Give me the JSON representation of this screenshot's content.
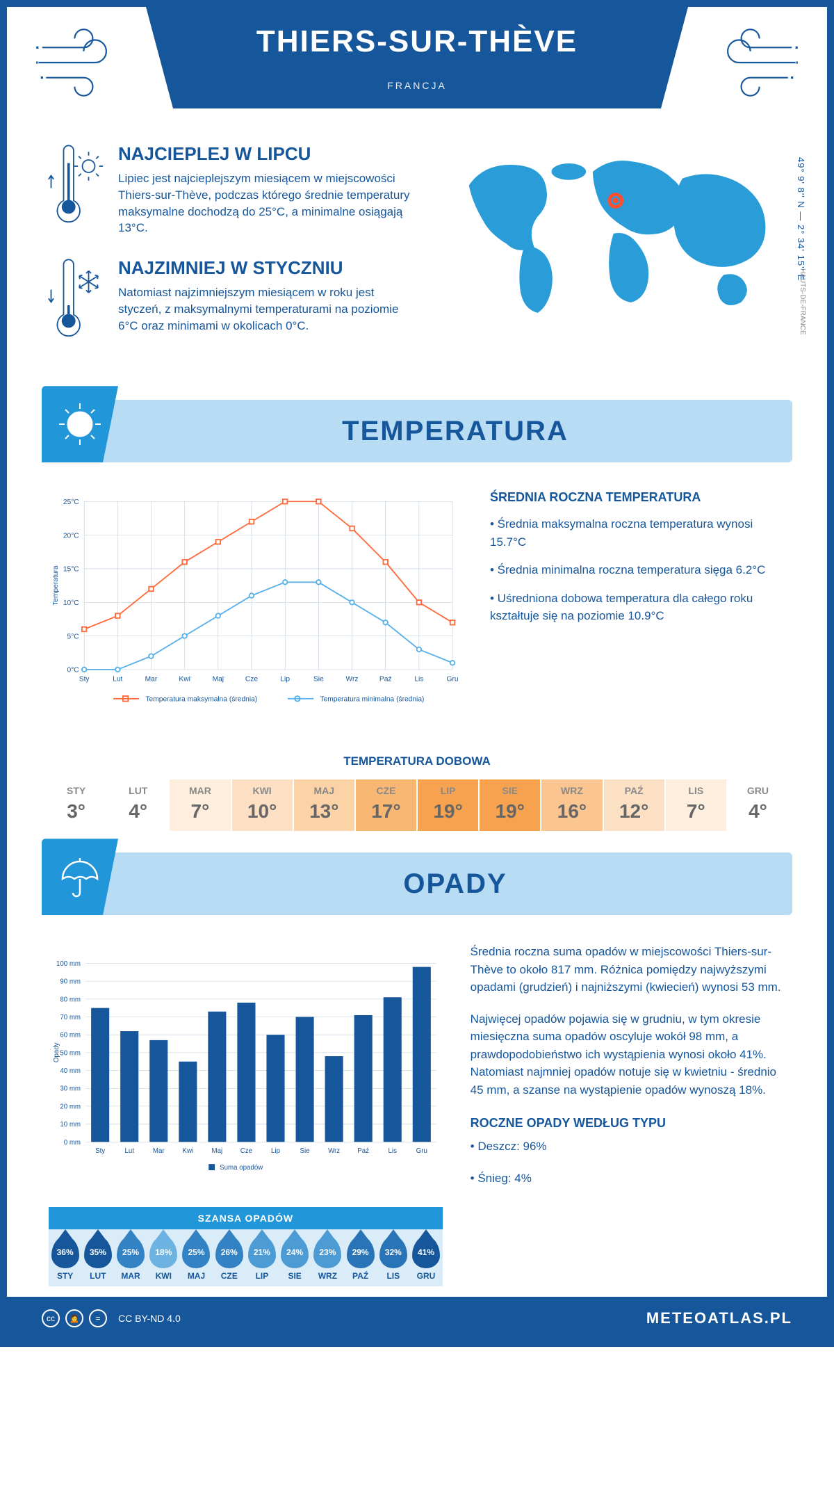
{
  "header": {
    "title": "THIERS-SUR-THÈVE",
    "country": "FRANCJA"
  },
  "coords": "49° 9' 8'' N — 2° 34' 15'' E",
  "region_label": "HAUTS-DE-FRANCE",
  "intro": {
    "warm": {
      "title": "NAJCIEPLEJ W LIPCU",
      "text": "Lipiec jest najcieplejszym miesiącem w miejscowości Thiers-sur-Thève, podczas którego średnie temperatury maksymalne dochodzą do 25°C, a minimalne osiągają 13°C."
    },
    "cold": {
      "title": "NAJZIMNIEJ W STYCZNIU",
      "text": "Natomiast najzimniejszym miesiącem w roku jest styczeń, z maksymalnymi temperaturami na poziomie 6°C oraz minimami w okolicach 0°C."
    }
  },
  "sections": {
    "temperature": "TEMPERATURA",
    "precip": "OPADY"
  },
  "temp_chart": {
    "type": "line",
    "months": [
      "Sty",
      "Lut",
      "Mar",
      "Kwi",
      "Maj",
      "Cze",
      "Lip",
      "Sie",
      "Wrz",
      "Paź",
      "Lis",
      "Gru"
    ],
    "max_values": [
      6,
      8,
      12,
      16,
      19,
      22,
      25,
      25,
      21,
      16,
      10,
      7
    ],
    "min_values": [
      0,
      0,
      2,
      5,
      8,
      11,
      13,
      13,
      10,
      7,
      3,
      1
    ],
    "ylim": [
      0,
      25
    ],
    "ytick_step": 5,
    "max_color": "#ff6a3d",
    "min_color": "#5ab0e8",
    "grid_color": "#b8c8dc",
    "y_axis_label": "Temperatura",
    "legend_max": "Temperatura maksymalna (średnia)",
    "legend_min": "Temperatura minimalna (średnia)"
  },
  "temp_info": {
    "title": "ŚREDNIA ROCZNA TEMPERATURA",
    "bul1": "• Średnia maksymalna roczna temperatura wynosi 15.7°C",
    "bul2": "• Średnia minimalna roczna temperatura sięga 6.2°C",
    "bul3": "• Uśredniona dobowa temperatura dla całego roku kształtuje się na poziomie 10.9°C"
  },
  "daily": {
    "title": "TEMPERATURA DOBOWA",
    "months": [
      "STY",
      "LUT",
      "MAR",
      "KWI",
      "MAJ",
      "CZE",
      "LIP",
      "SIE",
      "WRZ",
      "PAŹ",
      "LIS",
      "GRU"
    ],
    "values": [
      "3°",
      "4°",
      "7°",
      "10°",
      "13°",
      "17°",
      "19°",
      "19°",
      "16°",
      "12°",
      "7°",
      "4°"
    ],
    "colors": [
      "#ffffff",
      "#ffffff",
      "#fdeede",
      "#fde0c4",
      "#fbd3a7",
      "#f8b673",
      "#f6a24e",
      "#f6a24e",
      "#fac591",
      "#fce0c4",
      "#fdeede",
      "#ffffff"
    ]
  },
  "precip_chart": {
    "type": "bar",
    "months": [
      "Sty",
      "Lut",
      "Mar",
      "Kwi",
      "Maj",
      "Cze",
      "Lip",
      "Sie",
      "Wrz",
      "Paź",
      "Lis",
      "Gru"
    ],
    "values": [
      75,
      62,
      57,
      45,
      73,
      78,
      60,
      70,
      48,
      71,
      81,
      98
    ],
    "ylim": [
      0,
      100
    ],
    "ytick_step": 10,
    "y_axis_label": "Opady",
    "bar_color": "#16569b",
    "grid_color": "#b8c8dc",
    "legend": "Suma opadów"
  },
  "precip_text": {
    "p1": "Średnia roczna suma opadów w miejscowości Thiers-sur-Thève to około 817 mm. Różnica pomiędzy najwyższymi opadami (grudzień) i najniższymi (kwiecień) wynosi 53 mm.",
    "p2": "Najwięcej opadów pojawia się w grudniu, w tym okresie miesięczna suma opadów oscyluje wokół 98 mm, a prawdopodobieństwo ich wystąpienia wynosi około 41%. Natomiast najmniej opadów notuje się w kwietniu - średnio 45 mm, a szanse na wystąpienie opadów wynoszą 18%.",
    "type_title": "ROCZNE OPADY WEDŁUG TYPU",
    "rain": "• Deszcz: 96%",
    "snow": "• Śnieg: 4%"
  },
  "chance": {
    "title": "SZANSA OPADÓW",
    "months": [
      "STY",
      "LUT",
      "MAR",
      "KWI",
      "MAJ",
      "CZE",
      "LIP",
      "SIE",
      "WRZ",
      "PAŹ",
      "LIS",
      "GRU"
    ],
    "values": [
      "36%",
      "35%",
      "25%",
      "18%",
      "25%",
      "26%",
      "21%",
      "24%",
      "23%",
      "29%",
      "32%",
      "41%"
    ],
    "drop_colors": [
      "#16569b",
      "#16569b",
      "#3282c4",
      "#6cb3e2",
      "#3282c4",
      "#3282c4",
      "#4d9bd4",
      "#4d9bd4",
      "#4d9bd4",
      "#2874b6",
      "#2874b6",
      "#16569b"
    ]
  },
  "footer": {
    "license": "CC BY-ND 4.0",
    "brand": "METEOATLAS.PL"
  }
}
